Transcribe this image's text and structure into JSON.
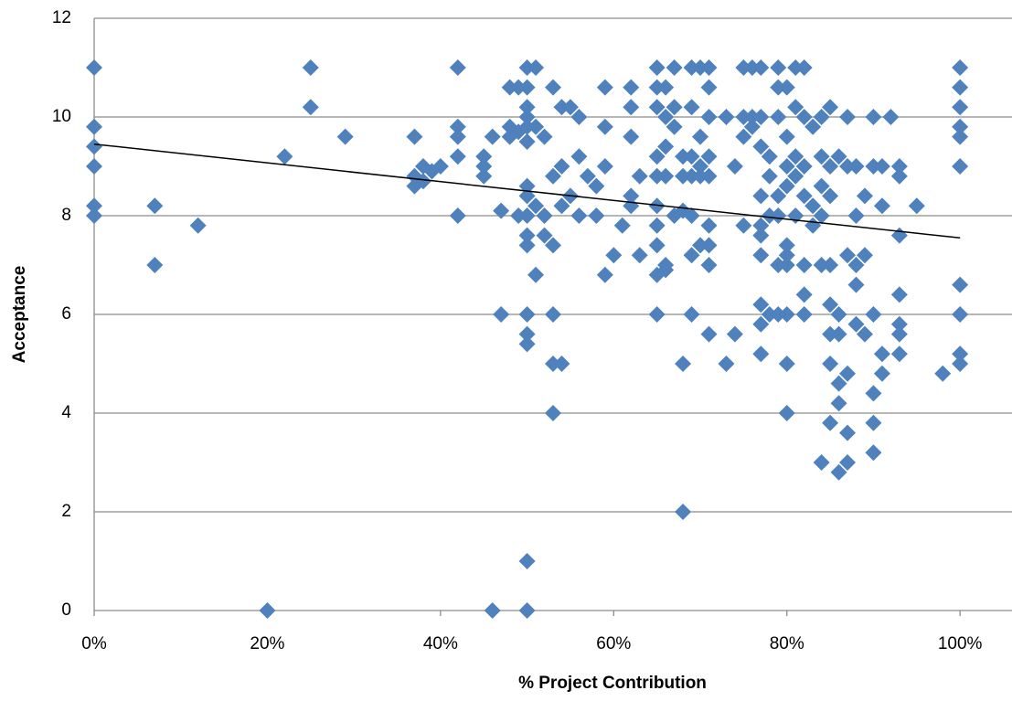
{
  "chart_data": {
    "type": "scatter",
    "x_label": "% Project Contribution",
    "y_label": "Acceptance",
    "color": "#4f81bd",
    "marker": "diamond",
    "grid": true,
    "xlim": [
      0,
      106
    ],
    "ylim": [
      0,
      12
    ],
    "xticks": [
      {
        "value": 0,
        "label": "0%"
      },
      {
        "value": 20,
        "label": "20%"
      },
      {
        "value": 40,
        "label": "40%"
      },
      {
        "value": 60,
        "label": "60%"
      },
      {
        "value": 80,
        "label": "80%"
      },
      {
        "value": 100,
        "label": "100%"
      }
    ],
    "yticks": [
      0,
      2,
      4,
      6,
      8,
      10,
      12
    ],
    "x": [
      0,
      0,
      0,
      0,
      0,
      0,
      7,
      7,
      12,
      20,
      22,
      25,
      25,
      29,
      37,
      37,
      37,
      38,
      38,
      39,
      40,
      42,
      42,
      42,
      42,
      42,
      45,
      45,
      45,
      46,
      46,
      47,
      47,
      48,
      48,
      48,
      49,
      49,
      49,
      50,
      50,
      50,
      50,
      50,
      50,
      50,
      50,
      50,
      50,
      50,
      50,
      50,
      50,
      50,
      50,
      51,
      51,
      51,
      51,
      52,
      52,
      52,
      53,
      53,
      53,
      53,
      53,
      53,
      54,
      54,
      54,
      54,
      55,
      55,
      56,
      56,
      56,
      57,
      58,
      58,
      59,
      59,
      59,
      59,
      60,
      61,
      62,
      62,
      62,
      62,
      62,
      63,
      63,
      65,
      65,
      65,
      65,
      65,
      65,
      65,
      65,
      65,
      65,
      66,
      66,
      66,
      66,
      66,
      66,
      67,
      67,
      67,
      67,
      68,
      68,
      68,
      68,
      68,
      69,
      69,
      69,
      69,
      69,
      69,
      69,
      70,
      70,
      70,
      70,
      70,
      71,
      71,
      71,
      71,
      71,
      71,
      71,
      71,
      71,
      73,
      73,
      74,
      74,
      75,
      75,
      75,
      75,
      76,
      76,
      76,
      77,
      77,
      77,
      77,
      77,
      77,
      77,
      77,
      77,
      77,
      78,
      78,
      78,
      78,
      79,
      79,
      79,
      79,
      79,
      79,
      79,
      80,
      80,
      80,
      80,
      80,
      80,
      80,
      80,
      80,
      80,
      81,
      81,
      81,
      81,
      81,
      82,
      82,
      82,
      82,
      82,
      82,
      82,
      83,
      83,
      83,
      84,
      84,
      84,
      84,
      84,
      84,
      85,
      85,
      85,
      85,
      85,
      85,
      85,
      85,
      86,
      86,
      86,
      86,
      86,
      86,
      87,
      87,
      87,
      87,
      87,
      87,
      88,
      88,
      88,
      88,
      88,
      89,
      89,
      89,
      90,
      90,
      90,
      90,
      90,
      90,
      91,
      91,
      91,
      91,
      92,
      93,
      93,
      93,
      93,
      93,
      93,
      93,
      95,
      98,
      100,
      100,
      100,
      100,
      100,
      100,
      100,
      100,
      100,
      100
    ],
    "values": [
      11,
      9.8,
      9.4,
      9,
      8.2,
      8,
      8.2,
      7,
      7.8,
      0,
      9.2,
      11,
      10.2,
      9.6,
      9.6,
      8.8,
      8.6,
      9,
      8.7,
      8.9,
      9,
      11,
      9.8,
      9.6,
      9.2,
      8,
      9.2,
      9,
      8.8,
      9.6,
      0,
      8.1,
      6,
      10.6,
      9.8,
      9.6,
      10.6,
      9.7,
      8,
      11,
      10.6,
      10.2,
      10,
      9.8,
      9.5,
      8.6,
      8.4,
      8,
      7.6,
      7.4,
      6,
      5.6,
      5.4,
      1,
      0,
      11,
      9.8,
      8.2,
      6.8,
      9.6,
      8,
      7.6,
      10.6,
      8.8,
      7.4,
      6,
      5,
      4,
      10.2,
      9,
      8.2,
      5,
      10.2,
      8.4,
      10,
      9.2,
      8,
      8.8,
      8.6,
      8,
      10.6,
      9.8,
      9,
      6.8,
      7.2,
      7.8,
      10.6,
      10.2,
      9.6,
      8.4,
      8.2,
      8.8,
      7.2,
      11,
      10.6,
      10.2,
      9.2,
      8.8,
      8.2,
      7.8,
      7.4,
      6.8,
      6,
      10.6,
      10,
      9.4,
      8.8,
      7,
      6.9,
      11,
      10.2,
      9.8,
      8,
      9.2,
      8.8,
      8.1,
      5,
      2,
      11,
      10.2,
      9.2,
      8.8,
      8,
      7.2,
      6,
      11,
      9.6,
      9,
      8.8,
      7.4,
      11,
      10.6,
      10,
      9.2,
      8.8,
      7.8,
      7.4,
      7,
      5.6,
      10,
      5,
      9,
      5.6,
      11,
      10,
      9.6,
      7.8,
      11,
      10,
      9.8,
      11,
      10,
      9.4,
      8.4,
      7.8,
      7.6,
      7.2,
      6.2,
      5.8,
      5.2,
      9.2,
      8.8,
      8,
      6,
      11,
      10.6,
      10,
      8.4,
      8,
      7,
      6,
      10.6,
      9.6,
      9,
      8.6,
      7.4,
      7.2,
      7,
      6,
      5,
      4,
      11,
      10.2,
      9.2,
      8.8,
      8,
      11,
      10,
      9,
      8.4,
      7,
      6.4,
      6,
      9.8,
      8.2,
      7.8,
      10,
      9.2,
      8.6,
      8,
      7,
      3,
      10.2,
      9,
      8.4,
      7,
      6.2,
      5.6,
      5,
      3.8,
      9.2,
      6,
      5.6,
      4.6,
      4.2,
      2.8,
      10,
      9,
      7.2,
      4.8,
      3.6,
      3,
      9,
      8,
      7,
      6.6,
      5.8,
      8.4,
      7.2,
      5.6,
      10,
      9,
      6,
      4.4,
      3.8,
      3.2,
      9,
      8.2,
      5.2,
      4.8,
      10,
      9,
      8.8,
      7.6,
      6.4,
      5.8,
      5.6,
      5.2,
      8.2,
      4.8,
      11,
      10.6,
      10.2,
      9.8,
      9.6,
      9,
      6.6,
      6,
      5.2,
      5
    ],
    "trendline": {
      "x": [
        0,
        100
      ],
      "values": [
        9.45,
        7.55
      ],
      "color": "#000000"
    }
  }
}
